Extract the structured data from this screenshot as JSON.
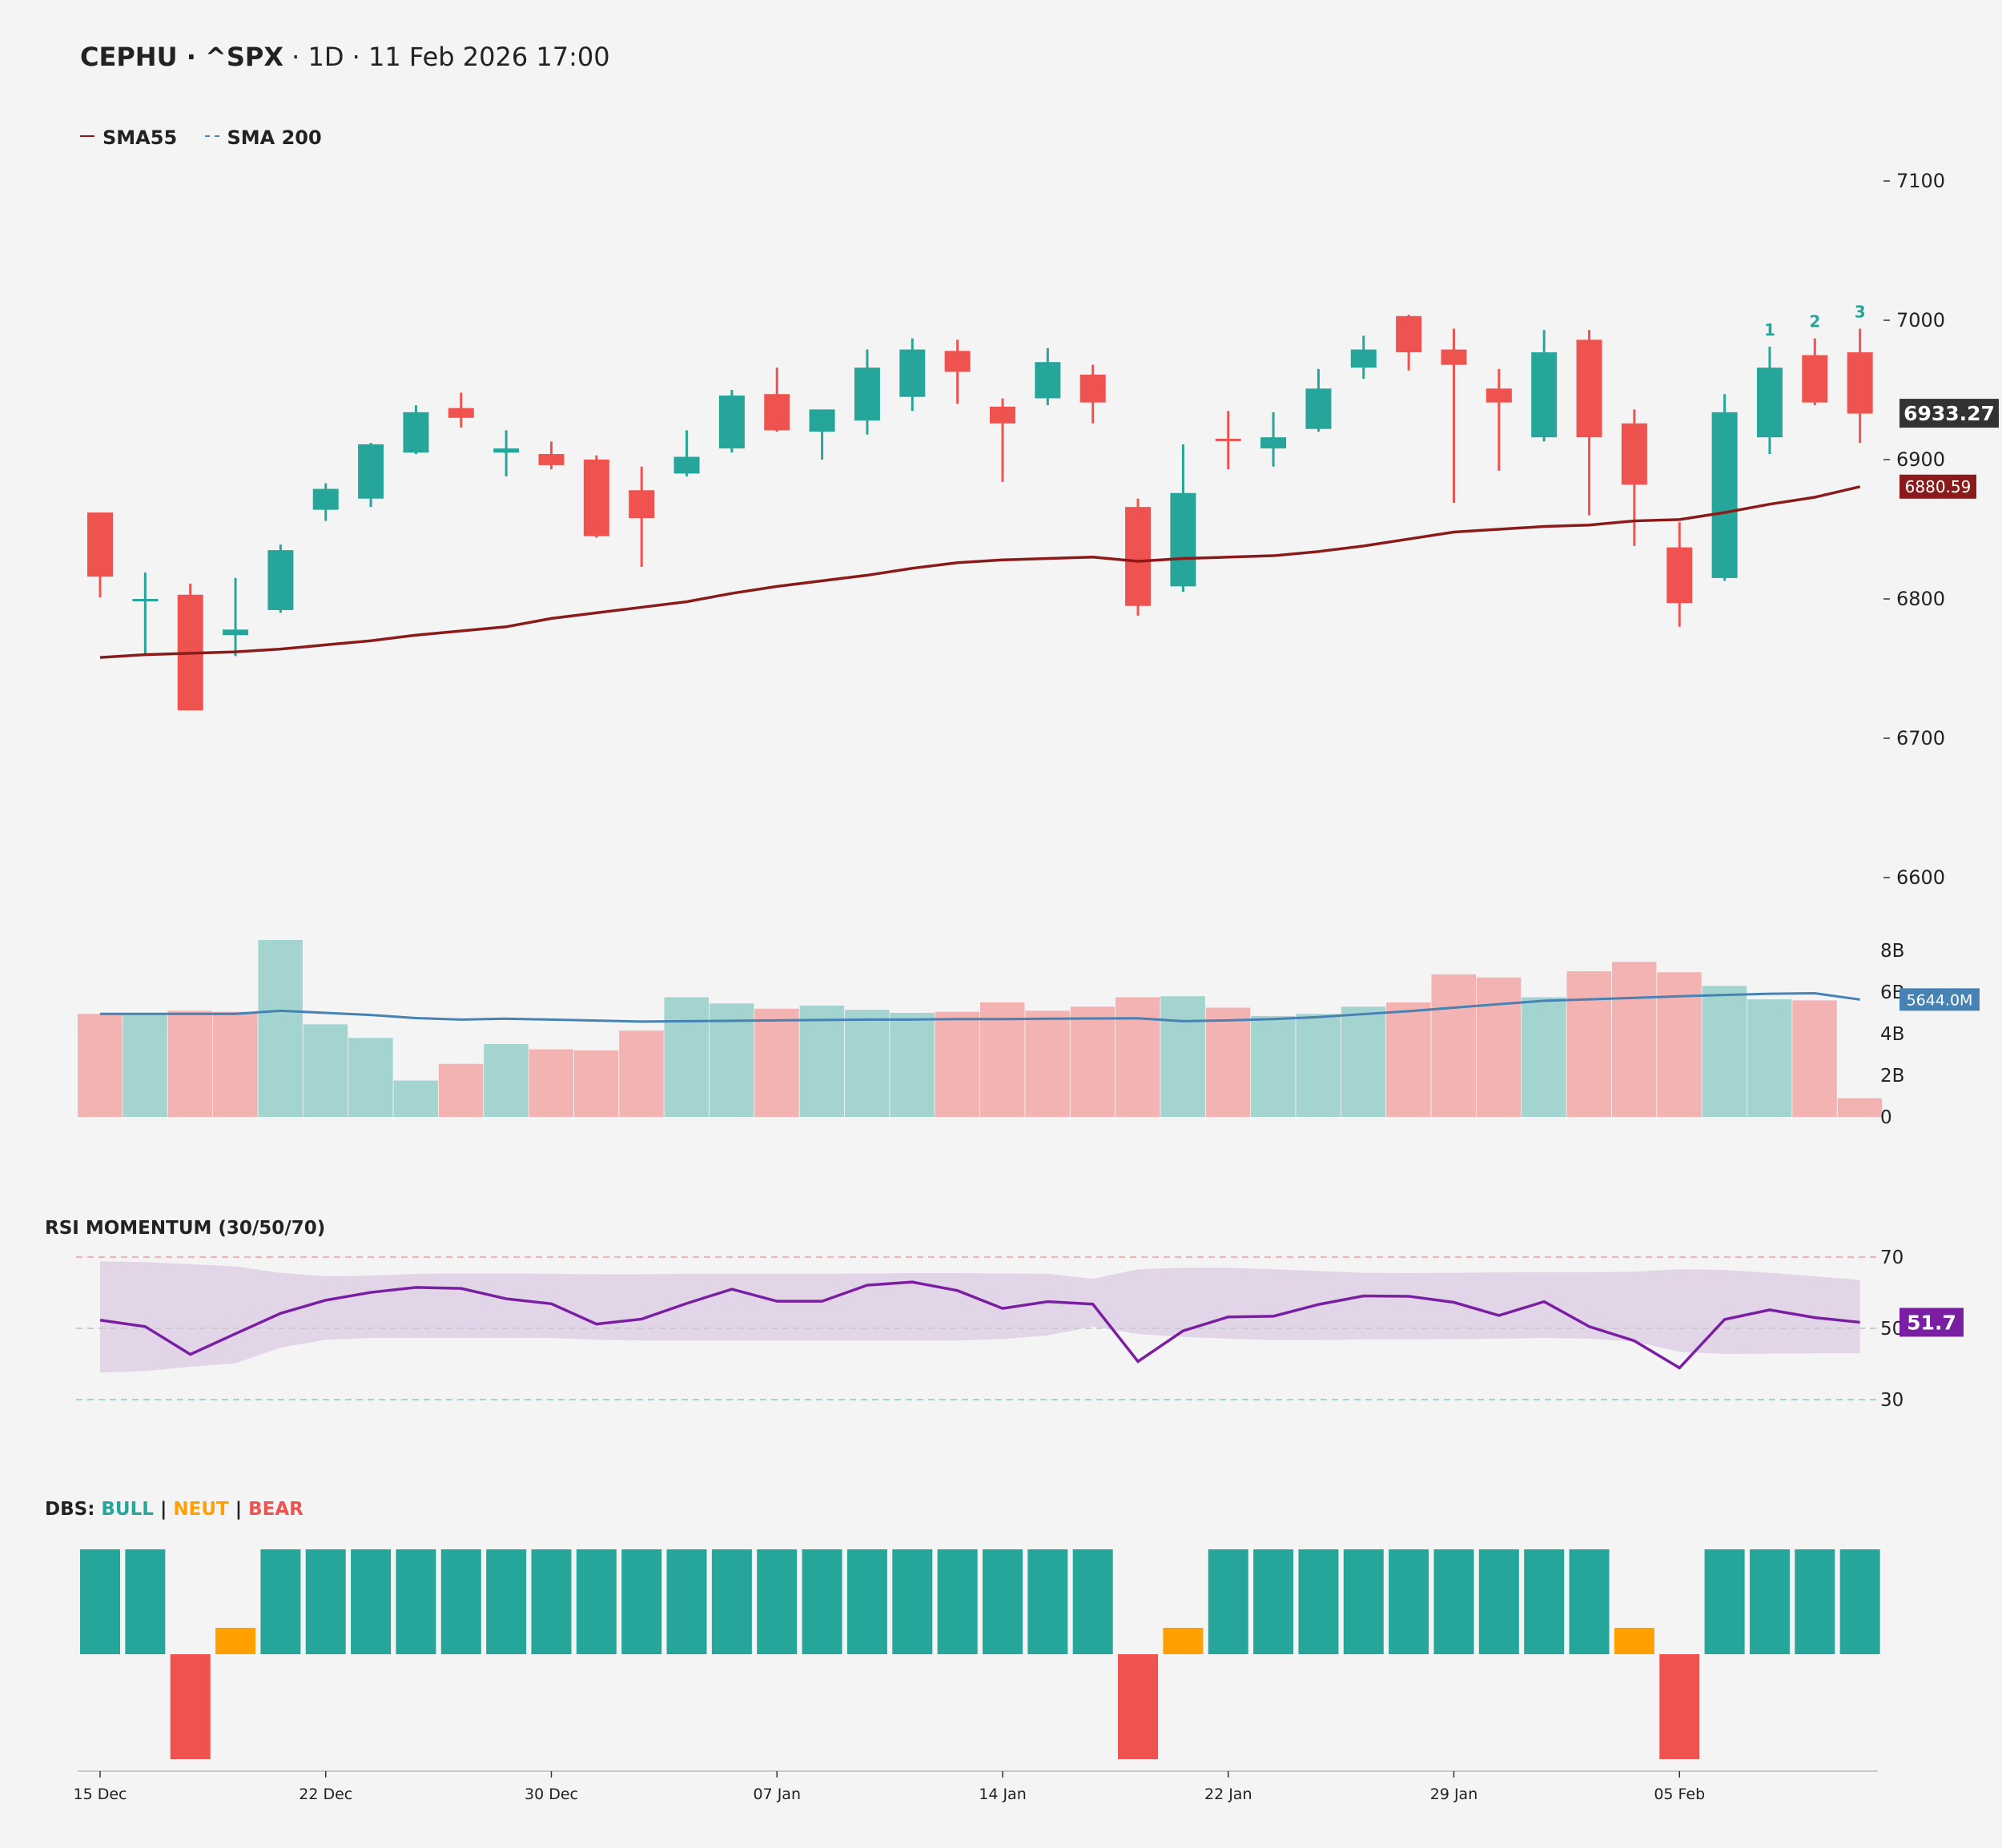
{
  "header": {
    "title_bold": "CEPHU · ^SPX",
    "title_rest": " · 1D · 11 Feb 2026 17:00"
  },
  "legend": [
    {
      "label": "SMA55",
      "color": "#8b1a1a",
      "style": "solid"
    },
    {
      "label": "SMA 200",
      "color": "#4682b4",
      "style": "dashed"
    }
  ],
  "colors": {
    "bull": "#26a69a",
    "bear": "#ef5350",
    "neutral": "#ffa000",
    "sma55": "#8b1a1a",
    "volume_ma": "#4682b4",
    "rsi_line": "#7b1fa2",
    "rsi_band": "#e1d5e7",
    "last_price_label": "#333333"
  },
  "last_price_label": "6933.27",
  "sma55_label": "6880.59",
  "volume_ma_label": "5644.0M",
  "rsi_value_label": "51.7",
  "rsi_panel_title": "RSI MOMENTUM (30/50/70)",
  "dbs_title": {
    "prefix": "DBS: ",
    "bull": "BULL",
    "sep1": " | ",
    "neut": "NEUT",
    "sep2": " | ",
    "bear": "BEAR"
  },
  "count_labels": [
    "1",
    "2",
    "3"
  ],
  "chart_data": [
    {
      "type": "candlestick",
      "title": "",
      "ylim": [
        6600,
        7100
      ],
      "yticks": [
        6600,
        6700,
        6800,
        6900,
        7000,
        7100
      ],
      "x": [
        "15 Dec",
        "16 Dec",
        "17 Dec",
        "18 Dec",
        "19 Dec",
        "22 Dec",
        "23 Dec",
        "24 Dec",
        "26 Dec",
        "29 Dec",
        "30 Dec",
        "31 Dec",
        "02 Jan",
        "05 Jan",
        "06 Jan",
        "07 Jan",
        "08 Jan",
        "09 Jan",
        "12 Jan",
        "13 Jan",
        "14 Jan",
        "15 Jan",
        "16 Jan",
        "20 Jan",
        "21 Jan",
        "22 Jan",
        "23 Jan",
        "26 Jan",
        "27 Jan",
        "28 Jan",
        "29 Jan",
        "30 Jan",
        "02 Feb",
        "03 Feb",
        "04 Feb",
        "05 Feb",
        "06 Feb",
        "09 Feb",
        "10 Feb",
        "11 Feb"
      ],
      "xtick_labels": [
        "15 Dec",
        "22 Dec",
        "30 Dec",
        "07 Jan",
        "14 Jan",
        "22 Jan",
        "29 Jan",
        "05 Feb"
      ],
      "open": [
        6862,
        6800,
        6803,
        6774,
        6792,
        6864,
        6872,
        6905,
        6937,
        6905,
        6904,
        6900,
        6878,
        6890,
        6908,
        6947,
        6920,
        6928,
        6945,
        6978,
        6938,
        6944,
        6961,
        6866,
        6809,
        6915,
        6908,
        6922,
        6966,
        7003,
        6979,
        6951,
        6916,
        6986,
        6926,
        6837,
        6815,
        6916,
        6975,
        6977
      ],
      "high": [
        6862,
        6819,
        6811,
        6815,
        6839,
        6883,
        6912,
        6939,
        6948,
        6921,
        6913,
        6903,
        6895,
        6921,
        6950,
        6966,
        6934,
        6979,
        6987,
        6986,
        6944,
        6980,
        6968,
        6872,
        6911,
        6935,
        6934,
        6965,
        6989,
        7004,
        6994,
        6965,
        6993,
        6993,
        6936,
        6855,
        6947,
        6981,
        6987,
        6994
      ],
      "low": [
        6801,
        6760,
        6720,
        6759,
        6790,
        6856,
        6866,
        6904,
        6923,
        6888,
        6893,
        6844,
        6823,
        6888,
        6905,
        6920,
        6900,
        6918,
        6935,
        6940,
        6884,
        6939,
        6926,
        6788,
        6805,
        6893,
        6895,
        6920,
        6958,
        6964,
        6869,
        6892,
        6913,
        6860,
        6838,
        6780,
        6813,
        6904,
        6939,
        6912
      ],
      "close": [
        6816,
        6800,
        6720,
        6778,
        6835,
        6879,
        6911,
        6934,
        6930,
        6908,
        6896,
        6845,
        6858,
        6902,
        6946,
        6921,
        6936,
        6966,
        6979,
        6963,
        6926,
        6970,
        6941,
        6795,
        6876,
        6914,
        6916,
        6951,
        6979,
        6977,
        6968,
        6941,
        6977,
        6916,
        6882,
        6797,
        6934,
        6966,
        6941,
        6933
      ],
      "series": [
        {
          "name": "SMA55",
          "values": [
            6758,
            6760,
            6761,
            6762,
            6764,
            6767,
            6770,
            6774,
            6777,
            6780,
            6786,
            6790,
            6794,
            6798,
            6804,
            6809,
            6813,
            6817,
            6822,
            6826,
            6828,
            6829,
            6830,
            6827,
            6829,
            6830,
            6831,
            6834,
            6838,
            6843,
            6848,
            6850,
            6852,
            6853,
            6856,
            6857,
            6862,
            6868,
            6873,
            6880.59
          ]
        }
      ]
    },
    {
      "type": "bar",
      "title": "",
      "ylabel": "",
      "ylim": [
        0,
        8
      ],
      "ytick_labels": [
        "0",
        "2B",
        "4B",
        "6B",
        "8B"
      ],
      "yticks": [
        0,
        2,
        4,
        6,
        8
      ],
      "values": [
        4.95,
        4.95,
        5.1,
        5.05,
        8.5,
        4.45,
        3.8,
        1.75,
        2.55,
        3.5,
        3.25,
        3.2,
        4.15,
        5.75,
        5.45,
        5.2,
        5.35,
        5.15,
        5.0,
        5.05,
        5.5,
        5.1,
        5.3,
        5.75,
        5.8,
        5.25,
        4.85,
        4.95,
        5.3,
        5.5,
        6.85,
        6.7,
        5.75,
        7.0,
        7.45,
        6.95,
        6.3,
        5.65,
        5.6,
        0.9
      ],
      "direction": [
        "bear",
        "bull",
        "bear",
        "bear",
        "bull",
        "bull",
        "bull",
        "bull",
        "bear",
        "bull",
        "bear",
        "bear",
        "bear",
        "bull",
        "bull",
        "bear",
        "bull",
        "bull",
        "bull",
        "bear",
        "bear",
        "bear",
        "bear",
        "bear",
        "bull",
        "bear",
        "bull",
        "bull",
        "bull",
        "bear",
        "bear",
        "bear",
        "bull",
        "bear",
        "bear",
        "bear",
        "bull",
        "bull",
        "bear",
        "bear"
      ],
      "series": [
        {
          "name": "",
          "values": [
            4.95,
            4.95,
            4.95,
            4.95,
            5.1,
            5.0,
            4.9,
            4.75,
            4.68,
            4.72,
            4.68,
            4.63,
            4.58,
            4.6,
            4.62,
            4.64,
            4.66,
            4.68,
            4.68,
            4.7,
            4.7,
            4.72,
            4.73,
            4.74,
            4.6,
            4.64,
            4.7,
            4.8,
            4.94,
            5.08,
            5.25,
            5.42,
            5.58,
            5.65,
            5.72,
            5.8,
            5.86,
            5.92,
            5.94,
            5.64
          ]
        }
      ]
    },
    {
      "type": "line",
      "title": "RSI MOMENTUM (30/50/70)",
      "ylim": [
        20,
        75
      ],
      "yticks": [
        30,
        50,
        70
      ],
      "rsi": [
        52.3,
        50.5,
        42.7,
        48.5,
        54.2,
        57.9,
        60.1,
        61.5,
        61.2,
        58.3,
        56.9,
        51.2,
        52.6,
        57.0,
        61.0,
        57.6,
        57.6,
        62.1,
        63.0,
        60.6,
        55.6,
        57.5,
        56.8,
        40.7,
        49.3,
        53.2,
        53.4,
        56.7,
        59.1,
        59.0,
        57.3,
        53.6,
        57.5,
        50.5,
        46.5,
        38.9,
        52.5,
        55.2,
        53.0,
        51.7
      ],
      "band_upper": [
        68.8,
        68.6,
        68.0,
        67.4,
        65.6,
        64.6,
        64.8,
        65.3,
        65.4,
        65.4,
        65.3,
        65.2,
        65.2,
        65.3,
        65.3,
        65.3,
        65.3,
        65.4,
        65.5,
        65.5,
        65.4,
        65.3,
        63.9,
        66.6,
        67.0,
        67.0,
        66.6,
        66.1,
        65.6,
        65.5,
        65.6,
        65.7,
        65.8,
        65.8,
        65.9,
        66.6,
        66.4,
        65.6,
        64.6,
        63.6
      ],
      "band_lower": [
        37.6,
        38.0,
        39.2,
        40.2,
        44.6,
        46.8,
        47.3,
        47.3,
        47.3,
        47.3,
        47.3,
        46.8,
        46.6,
        46.6,
        46.6,
        46.6,
        46.6,
        46.6,
        46.6,
        46.6,
        47.0,
        48.0,
        50.5,
        48.4,
        47.6,
        47.1,
        46.7,
        46.7,
        46.9,
        46.9,
        47.0,
        47.1,
        47.3,
        47.1,
        46.3,
        43.4,
        42.8,
        42.9,
        43.0,
        43.0
      ]
    },
    {
      "type": "bar",
      "title": "DBS",
      "values": [
        1,
        1,
        -1,
        0,
        1,
        1,
        1,
        1,
        1,
        1,
        1,
        1,
        1,
        1,
        1,
        1,
        1,
        1,
        1,
        1,
        1,
        1,
        1,
        -1,
        0,
        1,
        1,
        1,
        1,
        1,
        1,
        1,
        1,
        1,
        0,
        -1,
        1,
        1,
        1,
        1
      ],
      "series": [
        {
          "name": "BULL"
        },
        {
          "name": "NEUT"
        },
        {
          "name": "BEAR"
        }
      ]
    }
  ]
}
